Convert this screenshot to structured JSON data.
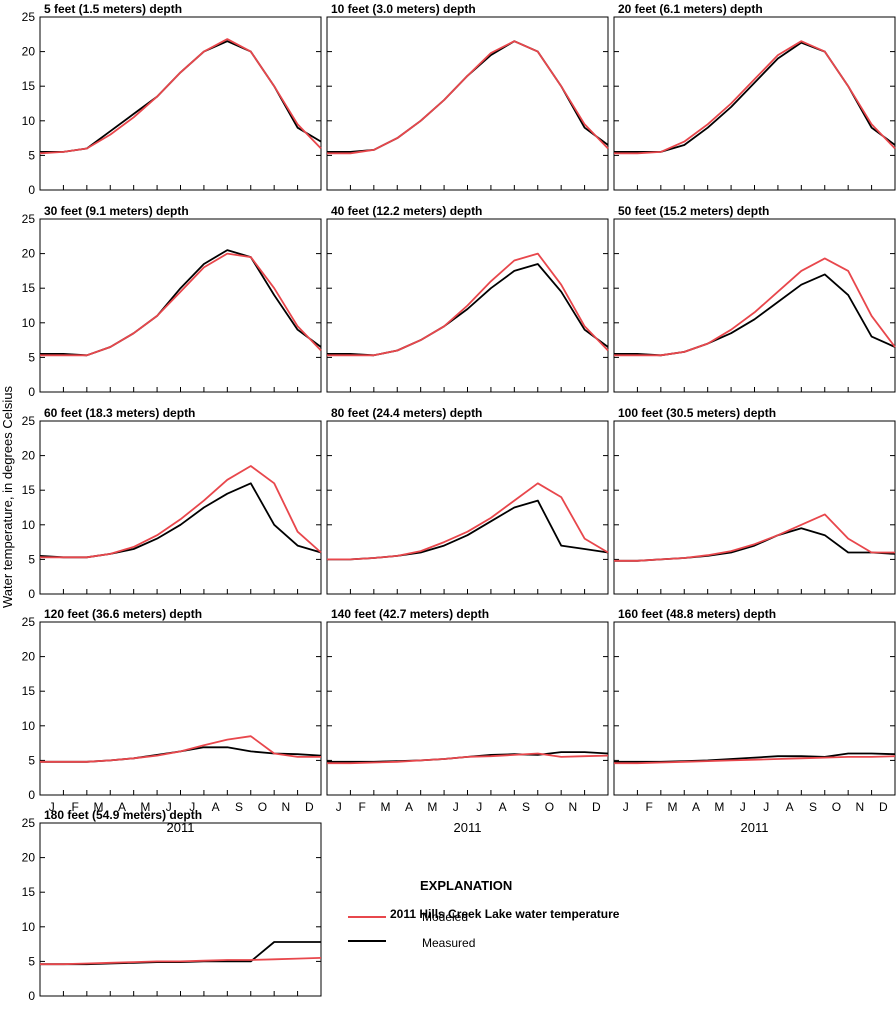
{
  "chart_data": {
    "type": "line",
    "ylabel": "Water temperature, in degrees Celsius",
    "xlabel": "2011",
    "month_labels": [
      "J",
      "F",
      "M",
      "A",
      "M",
      "J",
      "J",
      "A",
      "S",
      "O",
      "N",
      "D"
    ],
    "ylim": [
      0,
      25
    ],
    "y_ticks": [
      0,
      5,
      10,
      15,
      20,
      25
    ],
    "colors": {
      "modeled": "#e8474c",
      "measured": "#000000"
    },
    "legend": {
      "heading": "EXPLANATION",
      "title": "2011 Hills Creek Lake water temperature",
      "series": [
        "Modeled",
        "Measured"
      ]
    },
    "series_names": [
      "Modeled",
      "Measured"
    ],
    "panels": [
      {
        "title": "5 feet (1.5 meters) depth",
        "x_month": [
          0,
          1,
          2,
          3,
          4,
          5,
          6,
          7,
          8,
          9,
          10,
          11,
          12
        ],
        "modeled": [
          5.3,
          5.5,
          6.0,
          8.0,
          10.5,
          13.5,
          17.0,
          20.0,
          21.8,
          20.0,
          15.0,
          9.5,
          6.0
        ],
        "measured": [
          5.5,
          5.5,
          6.0,
          8.5,
          11.0,
          13.5,
          17.0,
          20.0,
          21.5,
          20.0,
          15.0,
          9.0,
          7.0
        ]
      },
      {
        "title": "10 feet (3.0 meters) depth",
        "x_month": [
          0,
          1,
          2,
          3,
          4,
          5,
          6,
          7,
          8,
          9,
          10,
          11,
          12
        ],
        "modeled": [
          5.3,
          5.3,
          5.8,
          7.5,
          10.0,
          13.0,
          16.5,
          19.8,
          21.5,
          20.0,
          15.0,
          9.5,
          6.0
        ],
        "measured": [
          5.5,
          5.5,
          5.8,
          7.5,
          10.0,
          13.0,
          16.5,
          19.5,
          21.5,
          20.0,
          15.0,
          9.0,
          6.5
        ]
      },
      {
        "title": "20 feet (6.1 meters) depth",
        "x_month": [
          0,
          1,
          2,
          3,
          4,
          5,
          6,
          7,
          8,
          9,
          10,
          11,
          12
        ],
        "modeled": [
          5.3,
          5.3,
          5.5,
          7.0,
          9.5,
          12.5,
          16.0,
          19.5,
          21.5,
          20.0,
          15.0,
          9.5,
          6.0
        ],
        "measured": [
          5.5,
          5.5,
          5.5,
          6.5,
          9.0,
          12.0,
          15.5,
          19.0,
          21.3,
          20.0,
          15.0,
          9.0,
          6.5
        ]
      },
      {
        "title": "30 feet (9.1 meters) depth",
        "x_month": [
          0,
          1,
          2,
          3,
          4,
          5,
          6,
          7,
          8,
          9,
          10,
          11,
          12
        ],
        "modeled": [
          5.3,
          5.3,
          5.3,
          6.5,
          8.5,
          11.0,
          14.5,
          18.0,
          20.0,
          19.5,
          15.0,
          9.5,
          6.0
        ],
        "measured": [
          5.5,
          5.5,
          5.3,
          6.5,
          8.5,
          11.0,
          15.0,
          18.5,
          20.5,
          19.5,
          14.0,
          9.0,
          6.5
        ]
      },
      {
        "title": "40 feet (12.2 meters) depth",
        "x_month": [
          0,
          1,
          2,
          3,
          4,
          5,
          6,
          7,
          8,
          9,
          10,
          11,
          12
        ],
        "modeled": [
          5.3,
          5.3,
          5.3,
          6.0,
          7.5,
          9.5,
          12.5,
          16.0,
          19.0,
          20.0,
          15.5,
          9.5,
          6.0
        ],
        "measured": [
          5.5,
          5.5,
          5.3,
          6.0,
          7.5,
          9.5,
          12.0,
          15.0,
          17.5,
          18.5,
          14.5,
          9.0,
          6.5
        ]
      },
      {
        "title": "50 feet (15.2 meters) depth",
        "x_month": [
          0,
          1,
          2,
          3,
          4,
          5,
          6,
          7,
          8,
          9,
          10,
          11,
          12
        ],
        "modeled": [
          5.3,
          5.3,
          5.3,
          5.8,
          7.0,
          9.0,
          11.5,
          14.5,
          17.5,
          19.3,
          17.5,
          11.0,
          6.5
        ],
        "measured": [
          5.5,
          5.5,
          5.3,
          5.8,
          7.0,
          8.5,
          10.5,
          13.0,
          15.5,
          17.0,
          14.0,
          8.0,
          6.5
        ]
      },
      {
        "title": "60 feet (18.3 meters) depth",
        "x_month": [
          0,
          1,
          2,
          3,
          4,
          5,
          6,
          7,
          8,
          9,
          10,
          11,
          12
        ],
        "modeled": [
          5.3,
          5.3,
          5.3,
          5.8,
          6.8,
          8.5,
          10.8,
          13.5,
          16.5,
          18.5,
          16.0,
          9.0,
          6.0
        ],
        "measured": [
          5.5,
          5.3,
          5.3,
          5.8,
          6.5,
          8.0,
          10.0,
          12.5,
          14.5,
          16.0,
          10.0,
          7.0,
          6.0
        ]
      },
      {
        "title": "80 feet (24.4 meters) depth",
        "x_month": [
          0,
          1,
          2,
          3,
          4,
          5,
          6,
          7,
          8,
          9,
          10,
          11,
          12
        ],
        "modeled": [
          5.0,
          5.0,
          5.2,
          5.5,
          6.2,
          7.5,
          9.0,
          11.0,
          13.5,
          16.0,
          14.0,
          8.0,
          6.0
        ],
        "measured": [
          5.0,
          5.0,
          5.2,
          5.5,
          6.0,
          7.0,
          8.5,
          10.5,
          12.5,
          13.5,
          7.0,
          6.5,
          6.0
        ]
      },
      {
        "title": "100 feet (30.5 meters) depth",
        "x_month": [
          0,
          1,
          2,
          3,
          4,
          5,
          6,
          7,
          8,
          9,
          10,
          11,
          12
        ],
        "modeled": [
          4.8,
          4.8,
          5.0,
          5.2,
          5.6,
          6.2,
          7.2,
          8.5,
          10.0,
          11.5,
          8.0,
          6.0,
          6.0
        ],
        "measured": [
          4.8,
          4.8,
          5.0,
          5.2,
          5.5,
          6.0,
          7.0,
          8.5,
          9.5,
          8.5,
          6.0,
          6.0,
          5.8
        ]
      },
      {
        "title": "120 feet (36.6 meters) depth",
        "x_month": [
          0,
          1,
          2,
          3,
          4,
          5,
          6,
          7,
          8,
          9,
          10,
          11,
          12
        ],
        "modeled": [
          4.8,
          4.8,
          4.8,
          5.0,
          5.3,
          5.7,
          6.3,
          7.2,
          8.0,
          8.5,
          6.0,
          5.5,
          5.5
        ],
        "measured": [
          4.8,
          4.8,
          4.8,
          5.0,
          5.3,
          5.8,
          6.3,
          6.9,
          6.9,
          6.3,
          6.0,
          5.9,
          5.7
        ]
      },
      {
        "title": "140 feet (42.7 meters) depth",
        "x_month": [
          0,
          1,
          2,
          3,
          4,
          5,
          6,
          7,
          8,
          9,
          10,
          11,
          12
        ],
        "modeled": [
          4.6,
          4.6,
          4.7,
          4.8,
          5.0,
          5.2,
          5.5,
          5.6,
          5.8,
          6.0,
          5.5,
          5.6,
          5.7
        ],
        "measured": [
          4.8,
          4.8,
          4.8,
          4.9,
          5.0,
          5.2,
          5.5,
          5.8,
          5.9,
          5.8,
          6.2,
          6.2,
          6.0
        ]
      },
      {
        "title": "160 feet (48.8 meters) depth",
        "x_month": [
          0,
          1,
          2,
          3,
          4,
          5,
          6,
          7,
          8,
          9,
          10,
          11,
          12
        ],
        "modeled": [
          4.6,
          4.6,
          4.7,
          4.8,
          4.9,
          5.0,
          5.1,
          5.2,
          5.3,
          5.4,
          5.5,
          5.5,
          5.6
        ],
        "measured": [
          4.8,
          4.8,
          4.8,
          4.9,
          5.0,
          5.2,
          5.4,
          5.6,
          5.6,
          5.5,
          6.0,
          6.0,
          5.9
        ]
      },
      {
        "title": "180 feet (54.9 meters) depth",
        "x_month": [
          0,
          1,
          2,
          3,
          4,
          5,
          6,
          7,
          8,
          9,
          10,
          11,
          12
        ],
        "modeled": [
          4.6,
          4.6,
          4.7,
          4.8,
          4.9,
          5.0,
          5.0,
          5.1,
          5.2,
          5.2,
          5.3,
          5.4,
          5.5
        ],
        "measured": [
          4.6,
          4.6,
          4.6,
          4.7,
          4.8,
          4.9,
          4.9,
          5.0,
          5.0,
          5.0,
          7.8,
          7.8,
          7.8
        ]
      }
    ]
  }
}
